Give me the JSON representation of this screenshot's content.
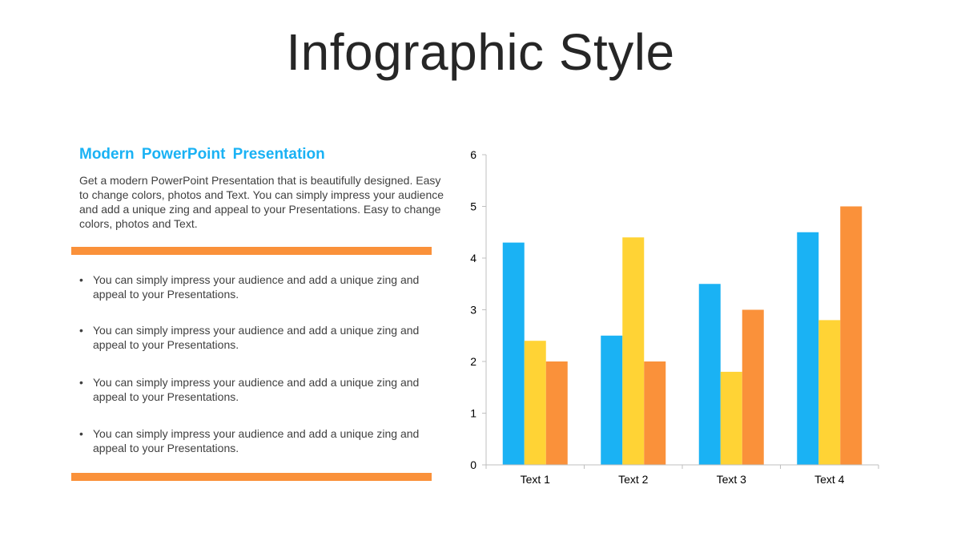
{
  "slide": {
    "title": "Infographic Style",
    "heading": "Modern  PowerPoint  Presentation",
    "intro": "Get a modern PowerPoint  Presentation that is beautifully designed. Easy to change colors, photos and Text. You can simply impress your audience and add a unique zing and appeal to your Presentations. Easy to change colors, photos and Text.",
    "bullet_marker": "•",
    "bullets": [
      "You can simply impress your audience and add a unique zing and appeal to your Presentations.",
      "You can simply impress your audience and add a unique zing and appeal to your Presentations.",
      "You can simply impress your audience and add a unique zing and appeal to your Presentations.",
      "You can simply impress your audience and add a unique zing and appeal to your Presentations."
    ],
    "accent_color": "#1ab2f4",
    "divider_color": "#fa913a"
  },
  "chart_data": {
    "type": "bar",
    "categories": [
      "Text 1",
      "Text 2",
      "Text 3",
      "Text 4"
    ],
    "series": [
      {
        "values": [
          4.3,
          2.5,
          3.5,
          4.5
        ],
        "color": "#1ab2f4"
      },
      {
        "values": [
          2.4,
          4.4,
          1.8,
          2.8
        ],
        "color": "#ffd335"
      },
      {
        "values": [
          2.0,
          2.0,
          3.0,
          5.0
        ],
        "color": "#fa913a"
      }
    ],
    "ylim": [
      0,
      6
    ],
    "yticks": [
      0,
      1,
      2,
      3,
      4,
      5,
      6
    ],
    "grid": false,
    "legend": "none"
  }
}
